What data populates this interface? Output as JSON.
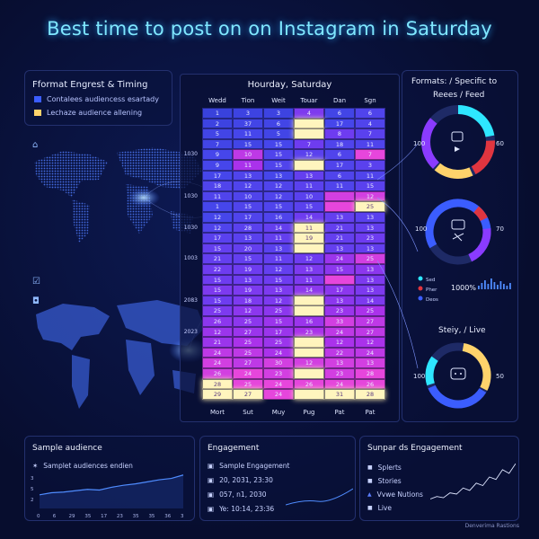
{
  "title": "Best time to post on on Instagram in Saturday",
  "legend_panel": {
    "heading": "Fformat Engrest & Timing",
    "items": [
      {
        "label": "Contalees audiencess esartady",
        "color": "#3b5dff"
      },
      {
        "label": "Lechaze audience allening",
        "color": "#ffd36b"
      }
    ]
  },
  "heatmap": {
    "title": "Hourday, Saturday",
    "columns": [
      "Wedd",
      "Tion",
      "Weit",
      "Touar",
      "Dan",
      "Sgn"
    ],
    "footer": [
      "Mort",
      "Sut",
      "Muy",
      "Pug",
      "Pat",
      "Pat"
    ],
    "row_labels": [
      {
        "row": 4,
        "label": "1030"
      },
      {
        "row": 8,
        "label": "1030"
      },
      {
        "row": 11,
        "label": "1030"
      },
      {
        "row": 14,
        "label": "1003"
      },
      {
        "row": 18,
        "label": "2083"
      },
      {
        "row": 21,
        "label": "2023"
      }
    ],
    "rows": [
      [
        "1",
        "3",
        "3",
        "4",
        "6",
        "6"
      ],
      [
        "2",
        "37",
        "6",
        "",
        "17",
        "4"
      ],
      [
        "5",
        "11",
        "5",
        "",
        "8",
        "7"
      ],
      [
        "7",
        "15",
        "15",
        "7",
        "18",
        "11"
      ],
      [
        "9",
        "10",
        "15",
        "12",
        "6",
        "7"
      ],
      [
        "9",
        "11",
        "15",
        "",
        "17",
        "3"
      ],
      [
        "17",
        "13",
        "13",
        "13",
        "6",
        "11"
      ],
      [
        "18",
        "12",
        "12",
        "11",
        "11",
        "15"
      ],
      [
        "11",
        "10",
        "12",
        "10",
        "",
        "12"
      ],
      [
        "1",
        "15",
        "15",
        "15",
        "",
        "25"
      ],
      [
        "12",
        "17",
        "16",
        "14",
        "13",
        "13"
      ],
      [
        "12",
        "28",
        "14",
        "11",
        "21",
        "13"
      ],
      [
        "17",
        "13",
        "11",
        "19",
        "21",
        "23"
      ],
      [
        "15",
        "20",
        "13",
        "",
        "13",
        "13"
      ],
      [
        "21",
        "15",
        "11",
        "12",
        "24",
        "25"
      ],
      [
        "22",
        "19",
        "12",
        "13",
        "15",
        "13"
      ],
      [
        "15",
        "13",
        "15",
        "11",
        "",
        "13"
      ],
      [
        "15",
        "19",
        "13",
        "14",
        "17",
        "13"
      ],
      [
        "15",
        "18",
        "12",
        "",
        "13",
        "14"
      ],
      [
        "25",
        "12",
        "25",
        "",
        "23",
        "25"
      ],
      [
        "26",
        "25",
        "15",
        "16",
        "33",
        "27"
      ],
      [
        "12",
        "27",
        "17",
        "23",
        "24",
        "27"
      ],
      [
        "21",
        "25",
        "25",
        "",
        "12",
        "12"
      ],
      [
        "24",
        "25",
        "24",
        "",
        "22",
        "24"
      ],
      [
        "24",
        "27",
        "30",
        "12",
        "13",
        "13"
      ],
      [
        "26",
        "24",
        "23",
        "",
        "23",
        "28"
      ],
      [
        "28",
        "25",
        "24",
        "26",
        "24",
        "26"
      ],
      [
        "29",
        "27",
        "24",
        "",
        "31",
        "28"
      ]
    ],
    "intensity": [
      [
        0.2,
        0.25,
        0.25,
        0.6,
        0.3,
        0.4
      ],
      [
        0.25,
        0.3,
        0.3,
        0.95,
        0.35,
        0.4
      ],
      [
        0.3,
        0.35,
        0.3,
        0.95,
        0.55,
        0.45
      ],
      [
        0.3,
        0.3,
        0.35,
        0.55,
        0.4,
        0.4
      ],
      [
        0.35,
        0.8,
        0.4,
        0.45,
        0.4,
        0.9
      ],
      [
        0.35,
        0.75,
        0.4,
        0.95,
        0.4,
        0.45
      ],
      [
        0.35,
        0.4,
        0.35,
        0.5,
        0.4,
        0.4
      ],
      [
        0.4,
        0.4,
        0.4,
        0.45,
        0.4,
        0.45
      ],
      [
        0.4,
        0.4,
        0.4,
        0.45,
        0.85,
        0.85
      ],
      [
        0.35,
        0.4,
        0.4,
        0.45,
        0.9,
        0.95
      ],
      [
        0.35,
        0.4,
        0.4,
        0.55,
        0.5,
        0.45
      ],
      [
        0.4,
        0.45,
        0.5,
        0.95,
        0.5,
        0.5
      ],
      [
        0.45,
        0.45,
        0.5,
        0.95,
        0.5,
        0.55
      ],
      [
        0.5,
        0.5,
        0.45,
        0.95,
        0.5,
        0.5
      ],
      [
        0.5,
        0.5,
        0.5,
        0.55,
        0.7,
        0.85
      ],
      [
        0.55,
        0.55,
        0.5,
        0.6,
        0.65,
        0.65
      ],
      [
        0.55,
        0.55,
        0.55,
        0.6,
        0.9,
        0.6
      ],
      [
        0.6,
        0.6,
        0.6,
        0.65,
        0.65,
        0.6
      ],
      [
        0.55,
        0.6,
        0.6,
        0.95,
        0.65,
        0.6
      ],
      [
        0.6,
        0.65,
        0.65,
        0.95,
        0.7,
        0.75
      ],
      [
        0.65,
        0.65,
        0.7,
        0.7,
        0.85,
        0.8
      ],
      [
        0.7,
        0.7,
        0.7,
        0.75,
        0.8,
        0.8
      ],
      [
        0.7,
        0.75,
        0.7,
        0.95,
        0.75,
        0.75
      ],
      [
        0.8,
        0.8,
        0.75,
        0.95,
        0.8,
        0.8
      ],
      [
        0.85,
        0.8,
        0.85,
        0.85,
        0.85,
        0.85
      ],
      [
        0.85,
        0.9,
        0.85,
        0.95,
        0.85,
        0.9
      ],
      [
        0.95,
        0.9,
        0.9,
        0.9,
        0.9,
        0.9
      ],
      [
        0.95,
        0.95,
        0.9,
        0.95,
        0.95,
        0.95
      ]
    ]
  },
  "right_panel": {
    "formats_title": "Formats: / Specific to",
    "reels_title": "Reees / Feed",
    "ring1_left": "100",
    "ring1_right": "60",
    "feed_title": "Feed, / Stories",
    "ring2_left": "100",
    "ring2_right": "70",
    "mini_legend": [
      "Sed",
      "Pher",
      "Deos"
    ],
    "mini_value": "1000%",
    "live_title": "Steiy, / Live",
    "ring3_left": "100",
    "ring3_right": "50"
  },
  "bottom": {
    "sample": {
      "heading": "Sample audience",
      "item": "Samplet audiences endien",
      "y_ticks": [
        "3",
        "5",
        "2"
      ],
      "x_ticks": [
        "0",
        "6",
        "29",
        "35",
        "17",
        "23",
        "35",
        "35",
        "36",
        "3"
      ],
      "values": [
        2,
        2.3,
        2.4,
        2.6,
        2.8,
        2.7,
        3.1,
        3.4,
        3.6,
        3.9,
        4.2,
        4.4,
        4.9
      ]
    },
    "engagement": {
      "heading": "Engagement",
      "items": [
        "Sample Engagement",
        "20, 2031, 23:30",
        "057, n1, 2030",
        "Ye: 10:14, 23:36"
      ]
    },
    "supparts": {
      "heading": "Sunpar ds Engagement",
      "items": [
        "Splerts",
        "Stories",
        "Vvwe Nutions",
        "Live"
      ],
      "values": [
        1,
        1.2,
        1.1,
        1.5,
        1.4,
        1.9,
        1.7,
        2.3,
        2.1,
        2.8,
        2.6,
        3.4,
        3.1,
        3.9
      ]
    }
  },
  "footer": "Denverima Rastions",
  "colors": {
    "accent": "#7fe7ff",
    "panel_border": "#23306e",
    "cyan": "#2ee6ff",
    "yellow": "#ffd36b",
    "red": "#e0353f",
    "purple": "#8a3bff"
  }
}
